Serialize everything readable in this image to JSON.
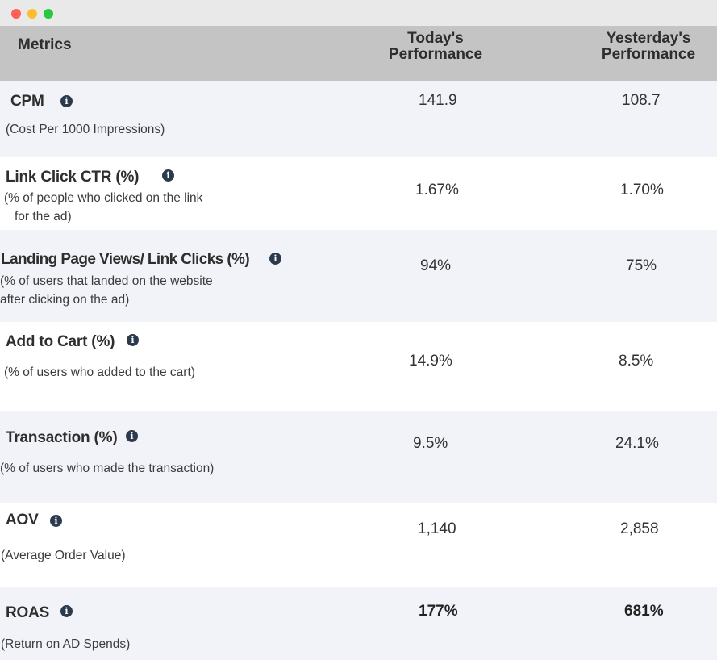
{
  "header": {
    "metrics": "Metrics",
    "today": [
      "Today's",
      "Performance"
    ],
    "yesterday": [
      "Yesterday's",
      "Performance"
    ]
  },
  "rows": [
    {
      "name": "CPM",
      "desc": [
        "(Cost Per 1000 Impressions)"
      ],
      "today": "141.9",
      "yesterday": "108.7"
    },
    {
      "name": "Link Click CTR (%)",
      "desc": [
        "(% of people who clicked on the link",
        "for the ad)"
      ],
      "today": "1.67%",
      "yesterday": "1.70%"
    },
    {
      "name": "Landing Page Views/ Link Clicks (%)",
      "desc": [
        "(% of users  that landed on the website",
        "after clicking on the ad)"
      ],
      "today": "94%",
      "yesterday": "75%"
    },
    {
      "name": "Add to Cart (%)",
      "desc": [
        "(%  of users who added to the cart)"
      ],
      "today": "14.9%",
      "yesterday": "8.5%"
    },
    {
      "name": "Transaction (%)",
      "desc": [
        "(% of users who made the transaction)"
      ],
      "today": "9.5%",
      "yesterday": "24.1%"
    },
    {
      "name": "AOV",
      "desc": [
        "(Average Order Value)"
      ],
      "today": "1,140",
      "yesterday": "2,858"
    },
    {
      "name": "ROAS",
      "desc": [
        "(Return on AD Spends)"
      ],
      "today": "177%",
      "yesterday": "681%"
    }
  ],
  "info_icon": "info-icon",
  "colors": {
    "header_bg": "#c4c4c4",
    "alt_row_bg": "#f1f3f8",
    "icon": "#2c3a4d"
  }
}
